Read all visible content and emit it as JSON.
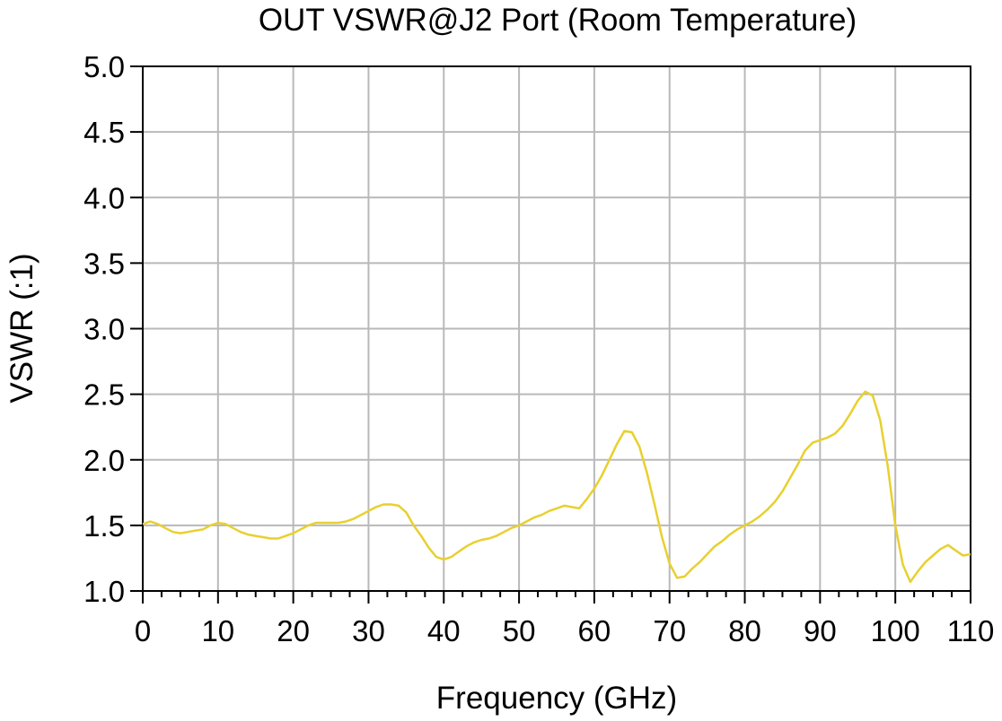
{
  "chart_data": {
    "type": "line",
    "title": "OUT VSWR@J2 Port (Room Temperature)",
    "xlabel": "Frequency (GHz)",
    "ylabel": "VSWR (:1)",
    "xlim": [
      0,
      110
    ],
    "ylim": [
      1.0,
      5.0
    ],
    "xticks": [
      0,
      10,
      20,
      30,
      40,
      50,
      60,
      70,
      80,
      90,
      100,
      110
    ],
    "xtick_labels": [
      "0",
      "10",
      "20",
      "30",
      "40",
      "50",
      "60",
      "70",
      "80",
      "90",
      "100",
      "110"
    ],
    "yticks": [
      1.0,
      1.5,
      2.0,
      2.5,
      3.0,
      3.5,
      4.0,
      4.5,
      5.0
    ],
    "ytick_labels": [
      "1.0",
      "1.5",
      "2.0",
      "2.5",
      "3.0",
      "3.5",
      "4.0",
      "4.5",
      "5.0"
    ],
    "x_minor_step": 2.5,
    "grid": true,
    "series": [
      {
        "color": "#e8d030",
        "x": [
          0,
          1,
          2,
          3,
          4,
          5,
          6,
          7,
          8,
          9,
          10,
          11,
          12,
          13,
          14,
          15,
          16,
          17,
          18,
          19,
          20,
          21,
          22,
          23,
          24,
          25,
          26,
          27,
          28,
          29,
          30,
          31,
          32,
          33,
          34,
          35,
          36,
          37,
          38,
          39,
          40,
          41,
          42,
          43,
          44,
          45,
          46,
          47,
          48,
          49,
          50,
          51,
          52,
          53,
          54,
          55,
          56,
          57,
          58,
          59,
          60,
          61,
          62,
          63,
          64,
          65,
          66,
          67,
          68,
          69,
          70,
          71,
          72,
          73,
          74,
          75,
          76,
          77,
          78,
          79,
          80,
          81,
          82,
          83,
          84,
          85,
          86,
          87,
          88,
          89,
          90,
          91,
          92,
          93,
          94,
          95,
          96,
          97,
          98,
          99,
          100,
          101,
          102,
          103,
          104,
          105,
          106,
          107,
          108,
          109,
          110
        ],
        "y": [
          1.51,
          1.53,
          1.51,
          1.48,
          1.45,
          1.44,
          1.45,
          1.46,
          1.47,
          1.5,
          1.52,
          1.51,
          1.48,
          1.45,
          1.43,
          1.42,
          1.41,
          1.4,
          1.4,
          1.42,
          1.44,
          1.47,
          1.5,
          1.52,
          1.52,
          1.52,
          1.52,
          1.53,
          1.55,
          1.58,
          1.61,
          1.64,
          1.66,
          1.66,
          1.65,
          1.6,
          1.5,
          1.42,
          1.33,
          1.26,
          1.24,
          1.26,
          1.3,
          1.34,
          1.37,
          1.39,
          1.4,
          1.42,
          1.45,
          1.48,
          1.5,
          1.53,
          1.56,
          1.58,
          1.61,
          1.63,
          1.65,
          1.64,
          1.63,
          1.7,
          1.78,
          1.88,
          2.0,
          2.12,
          2.22,
          2.21,
          2.1,
          1.9,
          1.66,
          1.41,
          1.21,
          1.1,
          1.11,
          1.17,
          1.22,
          1.28,
          1.34,
          1.38,
          1.43,
          1.47,
          1.5,
          1.53,
          1.57,
          1.62,
          1.68,
          1.76,
          1.86,
          1.96,
          2.07,
          2.13,
          2.15,
          2.17,
          2.2,
          2.26,
          2.35,
          2.45,
          2.52,
          2.49,
          2.3,
          1.95,
          1.5,
          1.2,
          1.07,
          1.15,
          1.22,
          1.27,
          1.32,
          1.35,
          1.31,
          1.27,
          1.28
        ]
      }
    ]
  }
}
